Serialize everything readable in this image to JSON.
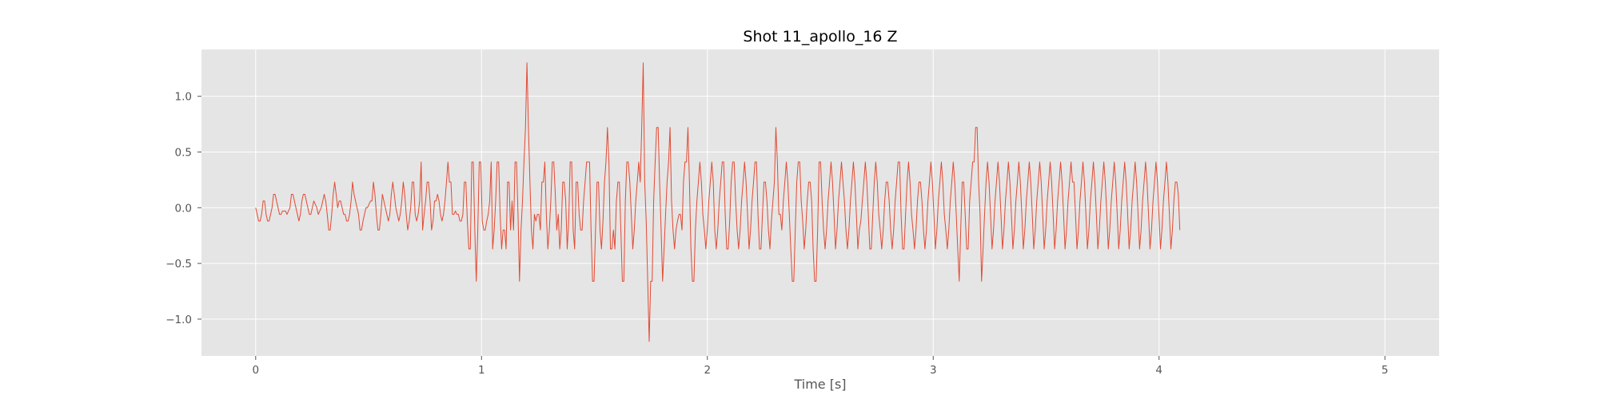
{
  "chart_data": {
    "type": "line",
    "title": "Shot 11_apollo_16 Z",
    "xlabel": "Time [s]",
    "ylabel": "",
    "xlim": [
      -0.24,
      5.24
    ],
    "ylim": [
      -1.33,
      1.42
    ],
    "grid": true,
    "style": "ggplot",
    "background_color": "#e5e5e5",
    "line_color": "#e24a33",
    "x_ticks": [
      0,
      1,
      2,
      3,
      4,
      5
    ],
    "x_tick_labels": [
      "0",
      "1",
      "2",
      "3",
      "4",
      "5"
    ],
    "y_ticks": [
      -1.0,
      -0.5,
      0.0,
      0.5,
      1.0
    ],
    "y_tick_labels": [
      "−1.0",
      "−0.5",
      "0.0",
      "0.5",
      "1.0"
    ],
    "sample_interval": 0.0066,
    "series": [
      {
        "values": [
          0,
          -0.06,
          -0.12,
          -0.12,
          -0.06,
          0.06,
          0.06,
          -0.06,
          -0.12,
          -0.12,
          -0.06,
          0,
          0.12,
          0.12,
          0.06,
          0,
          -0.06,
          -0.06,
          -0.03,
          -0.03,
          -0.03,
          -0.06,
          -0.03,
          0,
          0.12,
          0.12,
          0.06,
          0,
          -0.06,
          -0.12,
          -0.06,
          0.06,
          0.12,
          0.12,
          0.06,
          0,
          -0.06,
          -0.06,
          0,
          0.06,
          0.03,
          0,
          -0.06,
          -0.03,
          0,
          0.06,
          0.12,
          0.06,
          -0.06,
          -0.2,
          -0.2,
          -0.06,
          0.12,
          0.23,
          0.12,
          0,
          0.06,
          0.06,
          0,
          -0.06,
          -0.06,
          -0.12,
          -0.12,
          -0.06,
          0.06,
          0.23,
          0.12,
          0.06,
          0,
          -0.06,
          -0.2,
          -0.2,
          -0.12,
          -0.06,
          0,
          0,
          0.03,
          0.06,
          0.06,
          0.23,
          0.12,
          -0.06,
          -0.2,
          -0.2,
          -0.06,
          0.12,
          0.06,
          0,
          -0.06,
          -0.12,
          -0.06,
          0.12,
          0.23,
          0.12,
          0,
          -0.06,
          -0.12,
          -0.06,
          0.06,
          0.23,
          0.12,
          -0.06,
          -0.2,
          -0.12,
          0,
          0.23,
          0.23,
          -0.06,
          -0.12,
          -0.06,
          0.06,
          0.41,
          -0.2,
          -0.06,
          0.06,
          0.23,
          0.23,
          0.06,
          -0.2,
          -0.12,
          0.06,
          0.06,
          0.12,
          0.06,
          -0.06,
          -0.12,
          -0.06,
          0.06,
          0.23,
          0.41,
          0.23,
          0.23,
          -0.06,
          -0.06,
          -0.03,
          -0.06,
          -0.06,
          -0.12,
          -0.12,
          -0.06,
          0.23,
          0.23,
          -0.12,
          -0.37,
          -0.37,
          0.41,
          0.41,
          -0.2,
          -0.66,
          -0.2,
          0.41,
          0.41,
          -0.12,
          -0.2,
          -0.2,
          -0.12,
          -0.06,
          0.06,
          0.41,
          -0.37,
          -0.2,
          0.06,
          0.41,
          0.41,
          -0.06,
          -0.37,
          -0.2,
          -0.2,
          -0.37,
          0.23,
          0.23,
          -0.2,
          0.06,
          -0.2,
          0.41,
          0.41,
          -0.06,
          -0.66,
          -0.2,
          0.06,
          0.41,
          0.72,
          1.3,
          0.72,
          0.23,
          -0.2,
          -0.37,
          -0.06,
          -0.12,
          -0.06,
          -0.06,
          -0.2,
          0.23,
          0.23,
          0.41,
          -0.06,
          -0.37,
          -0.2,
          0.06,
          0.41,
          0.41,
          0.12,
          -0.2,
          -0.06,
          -0.37,
          -0.2,
          0.23,
          0.23,
          0.06,
          -0.37,
          -0.12,
          0.41,
          0.41,
          -0.2,
          -0.37,
          0.23,
          0.23,
          -0.06,
          -0.2,
          -0.2,
          0.06,
          0.23,
          0.41,
          0.41,
          0.41,
          -0.2,
          -0.66,
          -0.66,
          -0.2,
          0.23,
          0.23,
          -0.2,
          -0.37,
          -0.12,
          0.23,
          0.41,
          0.72,
          0.41,
          -0.37,
          -0.37,
          -0.2,
          -0.37,
          0.06,
          0.23,
          0.23,
          -0.2,
          -0.66,
          -0.66,
          0.06,
          0.41,
          0.41,
          0.23,
          -0.06,
          -0.37,
          -0.2,
          0.06,
          0.23,
          0.41,
          0.23,
          0.72,
          1.3,
          0.23,
          -0.12,
          -0.66,
          -1.2,
          -0.66,
          -0.66,
          0.06,
          0.41,
          0.72,
          0.72,
          0.23,
          -0.2,
          -0.66,
          -0.37,
          -0.06,
          0.23,
          0.41,
          0.72,
          0.06,
          -0.2,
          -0.37,
          -0.2,
          -0.12,
          -0.06,
          -0.06,
          -0.2,
          0.23,
          0.41,
          0.41,
          0.72,
          0.23,
          -0.37,
          -0.66,
          -0.66,
          -0.2,
          0.06,
          0.23,
          0.41,
          0.23,
          -0.06,
          -0.2,
          -0.37,
          -0.2,
          0.06,
          0.23,
          0.41,
          0.23,
          -0.2,
          -0.37,
          -0.2,
          0.06,
          0.23,
          0.41,
          0.41,
          -0.06,
          -0.37,
          -0.37,
          -0.12,
          0.23,
          0.41,
          0.41,
          0.06,
          -0.2,
          -0.37,
          -0.2,
          0.06,
          0.23,
          0.41,
          0.23,
          -0.06,
          -0.37,
          -0.2,
          0.06,
          0.23,
          0.41,
          0.41,
          -0.06,
          -0.37,
          -0.37,
          -0.06,
          0.23,
          0.23,
          0.06,
          -0.2,
          -0.37,
          -0.12,
          0.06,
          0.23,
          0.72,
          0.41,
          -0.06,
          -0.06,
          -0.2,
          0.06,
          0.23,
          0.41,
          0.23,
          -0.06,
          -0.37,
          -0.66,
          -0.66,
          -0.2,
          0.23,
          0.41,
          0.41,
          0.06,
          -0.12,
          -0.37,
          -0.2,
          0.06,
          0.23,
          0.23,
          0.06,
          -0.37,
          -0.66,
          -0.66,
          -0.2,
          0.41,
          0.41,
          0.06,
          -0.2,
          -0.37,
          -0.2,
          0.06,
          0.23,
          0.41,
          0.23,
          -0.06,
          -0.37,
          -0.2,
          0.06,
          0.23,
          0.41,
          0.23,
          0.06,
          -0.2,
          -0.37,
          -0.2,
          0.06,
          0.23,
          0.41,
          0.23,
          -0.06,
          -0.37,
          -0.2,
          -0.12,
          0.06,
          0.23,
          0.41,
          0.23,
          -0.06,
          -0.37,
          -0.37,
          -0.06,
          0.23,
          0.41,
          0.23,
          -0.06,
          -0.2,
          -0.37,
          -0.2,
          0.06,
          0.23,
          0.23,
          0.06,
          -0.2,
          -0.37,
          -0.2,
          0.06,
          0.23,
          0.41,
          0.41,
          -0.06,
          -0.37,
          -0.37,
          -0.06,
          0.23,
          0.41,
          0.23,
          -0.06,
          -0.2,
          -0.37,
          -0.2,
          0.06,
          0.23,
          0.23,
          0.06,
          -0.2,
          -0.37,
          -0.2,
          0.06,
          0.23,
          0.41,
          0.23,
          -0.06,
          -0.37,
          -0.2,
          0.06,
          0.23,
          0.41,
          0.23,
          -0.06,
          -0.2,
          -0.37,
          -0.2,
          0.06,
          0.23,
          0.41,
          0.23,
          -0.06,
          -0.37,
          -0.66,
          -0.2,
          0.23,
          0.23,
          -0.06,
          -0.37,
          -0.37,
          0.06,
          0.23,
          0.41,
          0.41,
          0.72,
          0.72,
          0.23,
          -0.06,
          -0.66,
          -0.37,
          -0.06,
          0.23,
          0.41,
          0.23,
          -0.06,
          -0.37,
          -0.2,
          0.06,
          0.23,
          0.41,
          0.23,
          -0.06,
          -0.37,
          -0.2,
          0.06,
          0.23,
          0.41,
          0.23,
          -0.06,
          -0.37,
          -0.2,
          0.06,
          0.23,
          0.41,
          0.23,
          -0.06,
          -0.37,
          -0.2,
          0.06,
          0.23,
          0.41,
          0.23,
          -0.06,
          -0.37,
          -0.2,
          0.06,
          0.23,
          0.41,
          0.23,
          -0.06,
          -0.37,
          -0.2,
          0.06,
          0.23,
          0.41,
          0.23,
          -0.06,
          -0.37,
          -0.2,
          0.06,
          0.23,
          0.41,
          0.23,
          -0.06,
          -0.37,
          -0.2,
          0.06,
          0.23,
          0.41,
          0.23,
          0.23,
          -0.06,
          -0.37,
          -0.2,
          0.06,
          0.23,
          0.41,
          0.23,
          -0.06,
          -0.37,
          -0.2,
          0.06,
          0.23,
          0.41,
          0.23,
          -0.06,
          -0.37,
          -0.2,
          0.06,
          0.23,
          0.41,
          0.23,
          -0.06,
          -0.37,
          -0.2,
          0.06,
          0.23,
          0.41,
          0.23,
          -0.06,
          -0.37,
          -0.2,
          0.06,
          0.23,
          0.41,
          0.23,
          -0.06,
          -0.37,
          -0.2,
          0.06,
          0.23,
          0.41,
          0.23,
          -0.06,
          -0.37,
          -0.2,
          0.06,
          0.23,
          0.41,
          0.23,
          -0.06,
          -0.37,
          -0.2,
          0.06,
          0.23,
          0.41,
          0.23,
          -0.06,
          -0.37,
          -0.2,
          0.06,
          0.23,
          0.41,
          0.23,
          -0.06,
          -0.37,
          -0.2,
          0.06,
          0.23,
          0.23,
          0.12,
          -0.2
        ]
      }
    ]
  }
}
